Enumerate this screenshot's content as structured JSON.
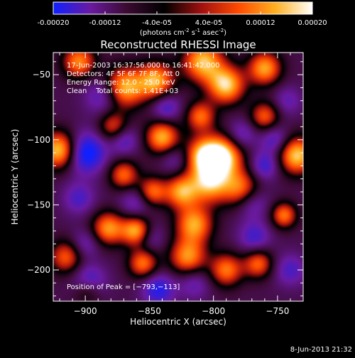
{
  "colorbar": {
    "tick_labels": [
      "-0.00020",
      "-0.00012",
      "-4.0e-05",
      "4.0e-05",
      "0.00012",
      "0.00020"
    ],
    "tick_values": [
      -0.0002,
      -0.00012,
      -4e-05,
      4e-05,
      0.00012,
      0.0002
    ],
    "range": [
      -0.0002,
      0.0002
    ],
    "unit_main": "(photons cm",
    "unit_sup1": "-2",
    "unit_mid": " s",
    "unit_sup2": "-1",
    "unit_mid2": " asec",
    "unit_sup3": "-2",
    "unit_end": ")",
    "colors": [
      "#1020ff",
      "#6a1aa0",
      "#3a0a30",
      "#000000",
      "#a01010",
      "#ff4a00",
      "#ffb020",
      "#ffffff"
    ]
  },
  "chart_data": {
    "type": "heatmap",
    "title": "Reconstructed RHESSI Image",
    "xlabel": "Heliocentric X (arcsec)",
    "ylabel": "Heliocentric Y (arcsec)",
    "xlim": [
      -925,
      -730
    ],
    "ylim": [
      -224,
      -33
    ],
    "xticks": [
      -900,
      -850,
      -800,
      -750
    ],
    "yticks": [
      -50,
      -100,
      -150,
      -200
    ],
    "xtick_labels": [
      "−900",
      "−850",
      "−800",
      "−750"
    ],
    "ytick_labels": [
      "−50",
      "−100",
      "−150",
      "−200"
    ],
    "annotations": [
      "17-Jun-2003 16:37:56.000 to 16:41:42.000",
      "Detectors: 4F 5F 6F 7F 8F, Att 0",
      "Energy Range: 12.0 - 25.0 keV",
      "Clean    Total counts: 1.41E+03"
    ],
    "peak_label": "Position of Peak = [−793,−113]",
    "peak": [
      -793,
      -113
    ],
    "sources": [
      {
        "x": -793,
        "y": -113,
        "v": 1.0,
        "s": 11
      },
      {
        "x": -920,
        "y": -108,
        "v": 0.95,
        "s": 10
      },
      {
        "x": -735,
        "y": -112,
        "v": 0.9,
        "s": 10
      },
      {
        "x": -870,
        "y": -60,
        "v": 0.85,
        "s": 11
      },
      {
        "x": -845,
        "y": -55,
        "v": 0.8,
        "s": 10
      },
      {
        "x": -808,
        "y": -40,
        "v": 0.85,
        "s": 11
      },
      {
        "x": -790,
        "y": -58,
        "v": 0.9,
        "s": 10
      },
      {
        "x": -760,
        "y": -45,
        "v": 0.75,
        "s": 9
      },
      {
        "x": -840,
        "y": -98,
        "v": 0.8,
        "s": 9
      },
      {
        "x": -870,
        "y": -127,
        "v": 0.55,
        "s": 8
      },
      {
        "x": -808,
        "y": -112,
        "v": 0.7,
        "s": 10
      },
      {
        "x": -803,
        "y": -133,
        "v": 0.8,
        "s": 11
      },
      {
        "x": -778,
        "y": -138,
        "v": 0.6,
        "s": 10
      },
      {
        "x": -825,
        "y": -140,
        "v": 0.7,
        "s": 9
      },
      {
        "x": -848,
        "y": -140,
        "v": 0.6,
        "s": 8
      },
      {
        "x": -815,
        "y": -165,
        "v": 0.75,
        "s": 10
      },
      {
        "x": -860,
        "y": -170,
        "v": 0.85,
        "s": 8
      },
      {
        "x": -882,
        "y": -168,
        "v": 0.7,
        "s": 9
      },
      {
        "x": -855,
        "y": -195,
        "v": 0.6,
        "s": 8
      },
      {
        "x": -820,
        "y": -190,
        "v": 0.7,
        "s": 10
      },
      {
        "x": -790,
        "y": -200,
        "v": 0.6,
        "s": 9
      },
      {
        "x": -765,
        "y": -195,
        "v": 0.55,
        "s": 8
      },
      {
        "x": -915,
        "y": -190,
        "v": 0.5,
        "s": 9
      },
      {
        "x": -898,
        "y": -215,
        "v": 0.45,
        "s": 8
      },
      {
        "x": -745,
        "y": -158,
        "v": 0.6,
        "s": 7
      },
      {
        "x": -760,
        "y": -82,
        "v": 0.5,
        "s": 8
      },
      {
        "x": -810,
        "y": -82,
        "v": 0.55,
        "s": 8
      },
      {
        "x": -878,
        "y": -90,
        "v": 0.45,
        "s": 8
      },
      {
        "x": -905,
        "y": -40,
        "v": 0.65,
        "s": 9
      },
      {
        "x": -900,
        "y": -110,
        "v": -1.0,
        "s": 11
      },
      {
        "x": -897,
        "y": -210,
        "v": -0.95,
        "s": 9
      },
      {
        "x": -843,
        "y": -215,
        "v": -0.75,
        "s": 9
      },
      {
        "x": -886,
        "y": -66,
        "v": -0.65,
        "s": 10
      },
      {
        "x": -860,
        "y": -148,
        "v": -0.55,
        "s": 9
      },
      {
        "x": -870,
        "y": -100,
        "v": -0.6,
        "s": 8
      },
      {
        "x": -837,
        "y": -75,
        "v": -0.65,
        "s": 8
      },
      {
        "x": -770,
        "y": -148,
        "v": -0.6,
        "s": 9
      },
      {
        "x": -752,
        "y": -100,
        "v": -0.6,
        "s": 8
      },
      {
        "x": -760,
        "y": -120,
        "v": -0.65,
        "s": 8
      },
      {
        "x": -768,
        "y": -175,
        "v": -0.6,
        "s": 9
      },
      {
        "x": -740,
        "y": -200,
        "v": -0.55,
        "s": 9
      },
      {
        "x": -778,
        "y": -96,
        "v": -0.55,
        "s": 8
      },
      {
        "x": -815,
        "y": -210,
        "v": -0.5,
        "s": 9
      },
      {
        "x": -905,
        "y": -145,
        "v": -0.55,
        "s": 9
      },
      {
        "x": -900,
        "y": -180,
        "v": -0.5,
        "s": 8
      },
      {
        "x": -830,
        "y": -115,
        "v": -0.45,
        "s": 8
      },
      {
        "x": -850,
        "y": -175,
        "v": -0.5,
        "s": 8
      },
      {
        "x": -742,
        "y": -70,
        "v": -0.45,
        "s": 8
      }
    ]
  },
  "footer": {
    "timestamp": "8-Jun-2013 21:32"
  }
}
